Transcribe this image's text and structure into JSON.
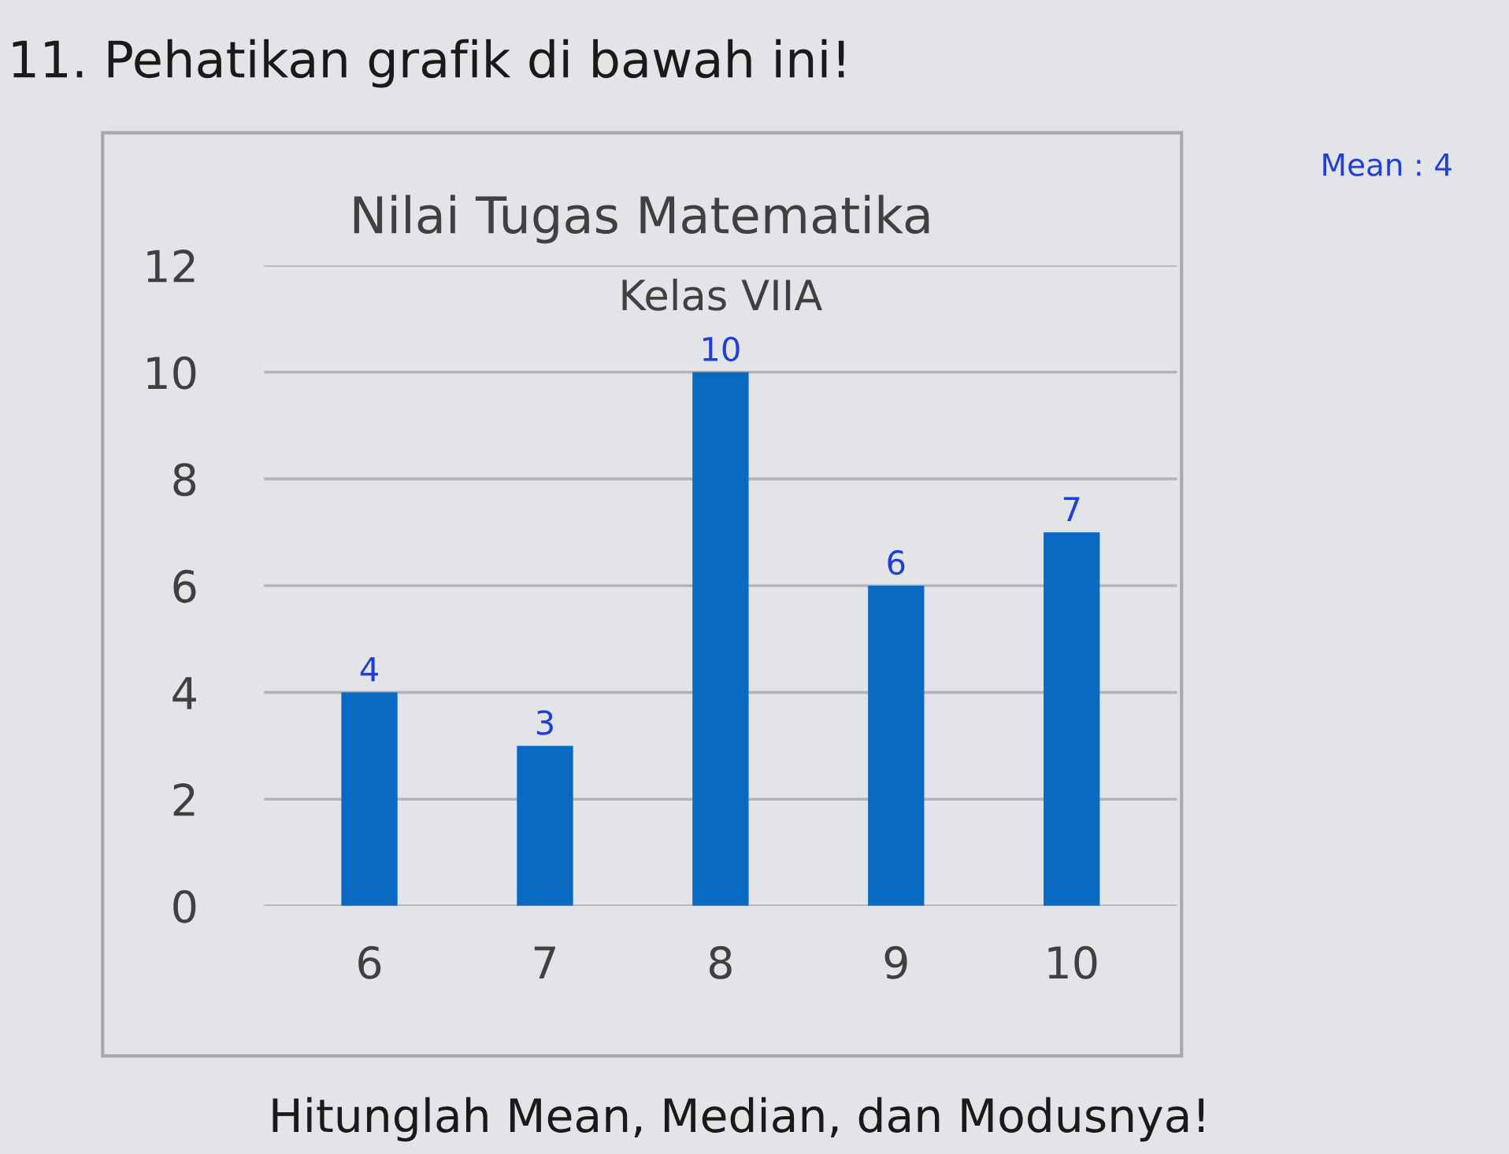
{
  "chart_data": {
    "type": "bar",
    "title": "Nilai Tugas Matematika",
    "subtitle": "Kelas VIIA",
    "categories": [
      "6",
      "7",
      "8",
      "9",
      "10"
    ],
    "values": [
      4,
      3,
      10,
      6,
      7
    ],
    "color": "#0a6ac2",
    "ylim": [
      0,
      12
    ],
    "yticks": [
      0,
      2,
      4,
      6,
      8,
      10,
      12
    ],
    "grid": "y",
    "data_labels": true,
    "annotations": [
      "11. Pehatikan grafik di bawah ini!",
      "Hitunglah Mean, Median, dan Modusnya!",
      "Mean : 4"
    ]
  }
}
